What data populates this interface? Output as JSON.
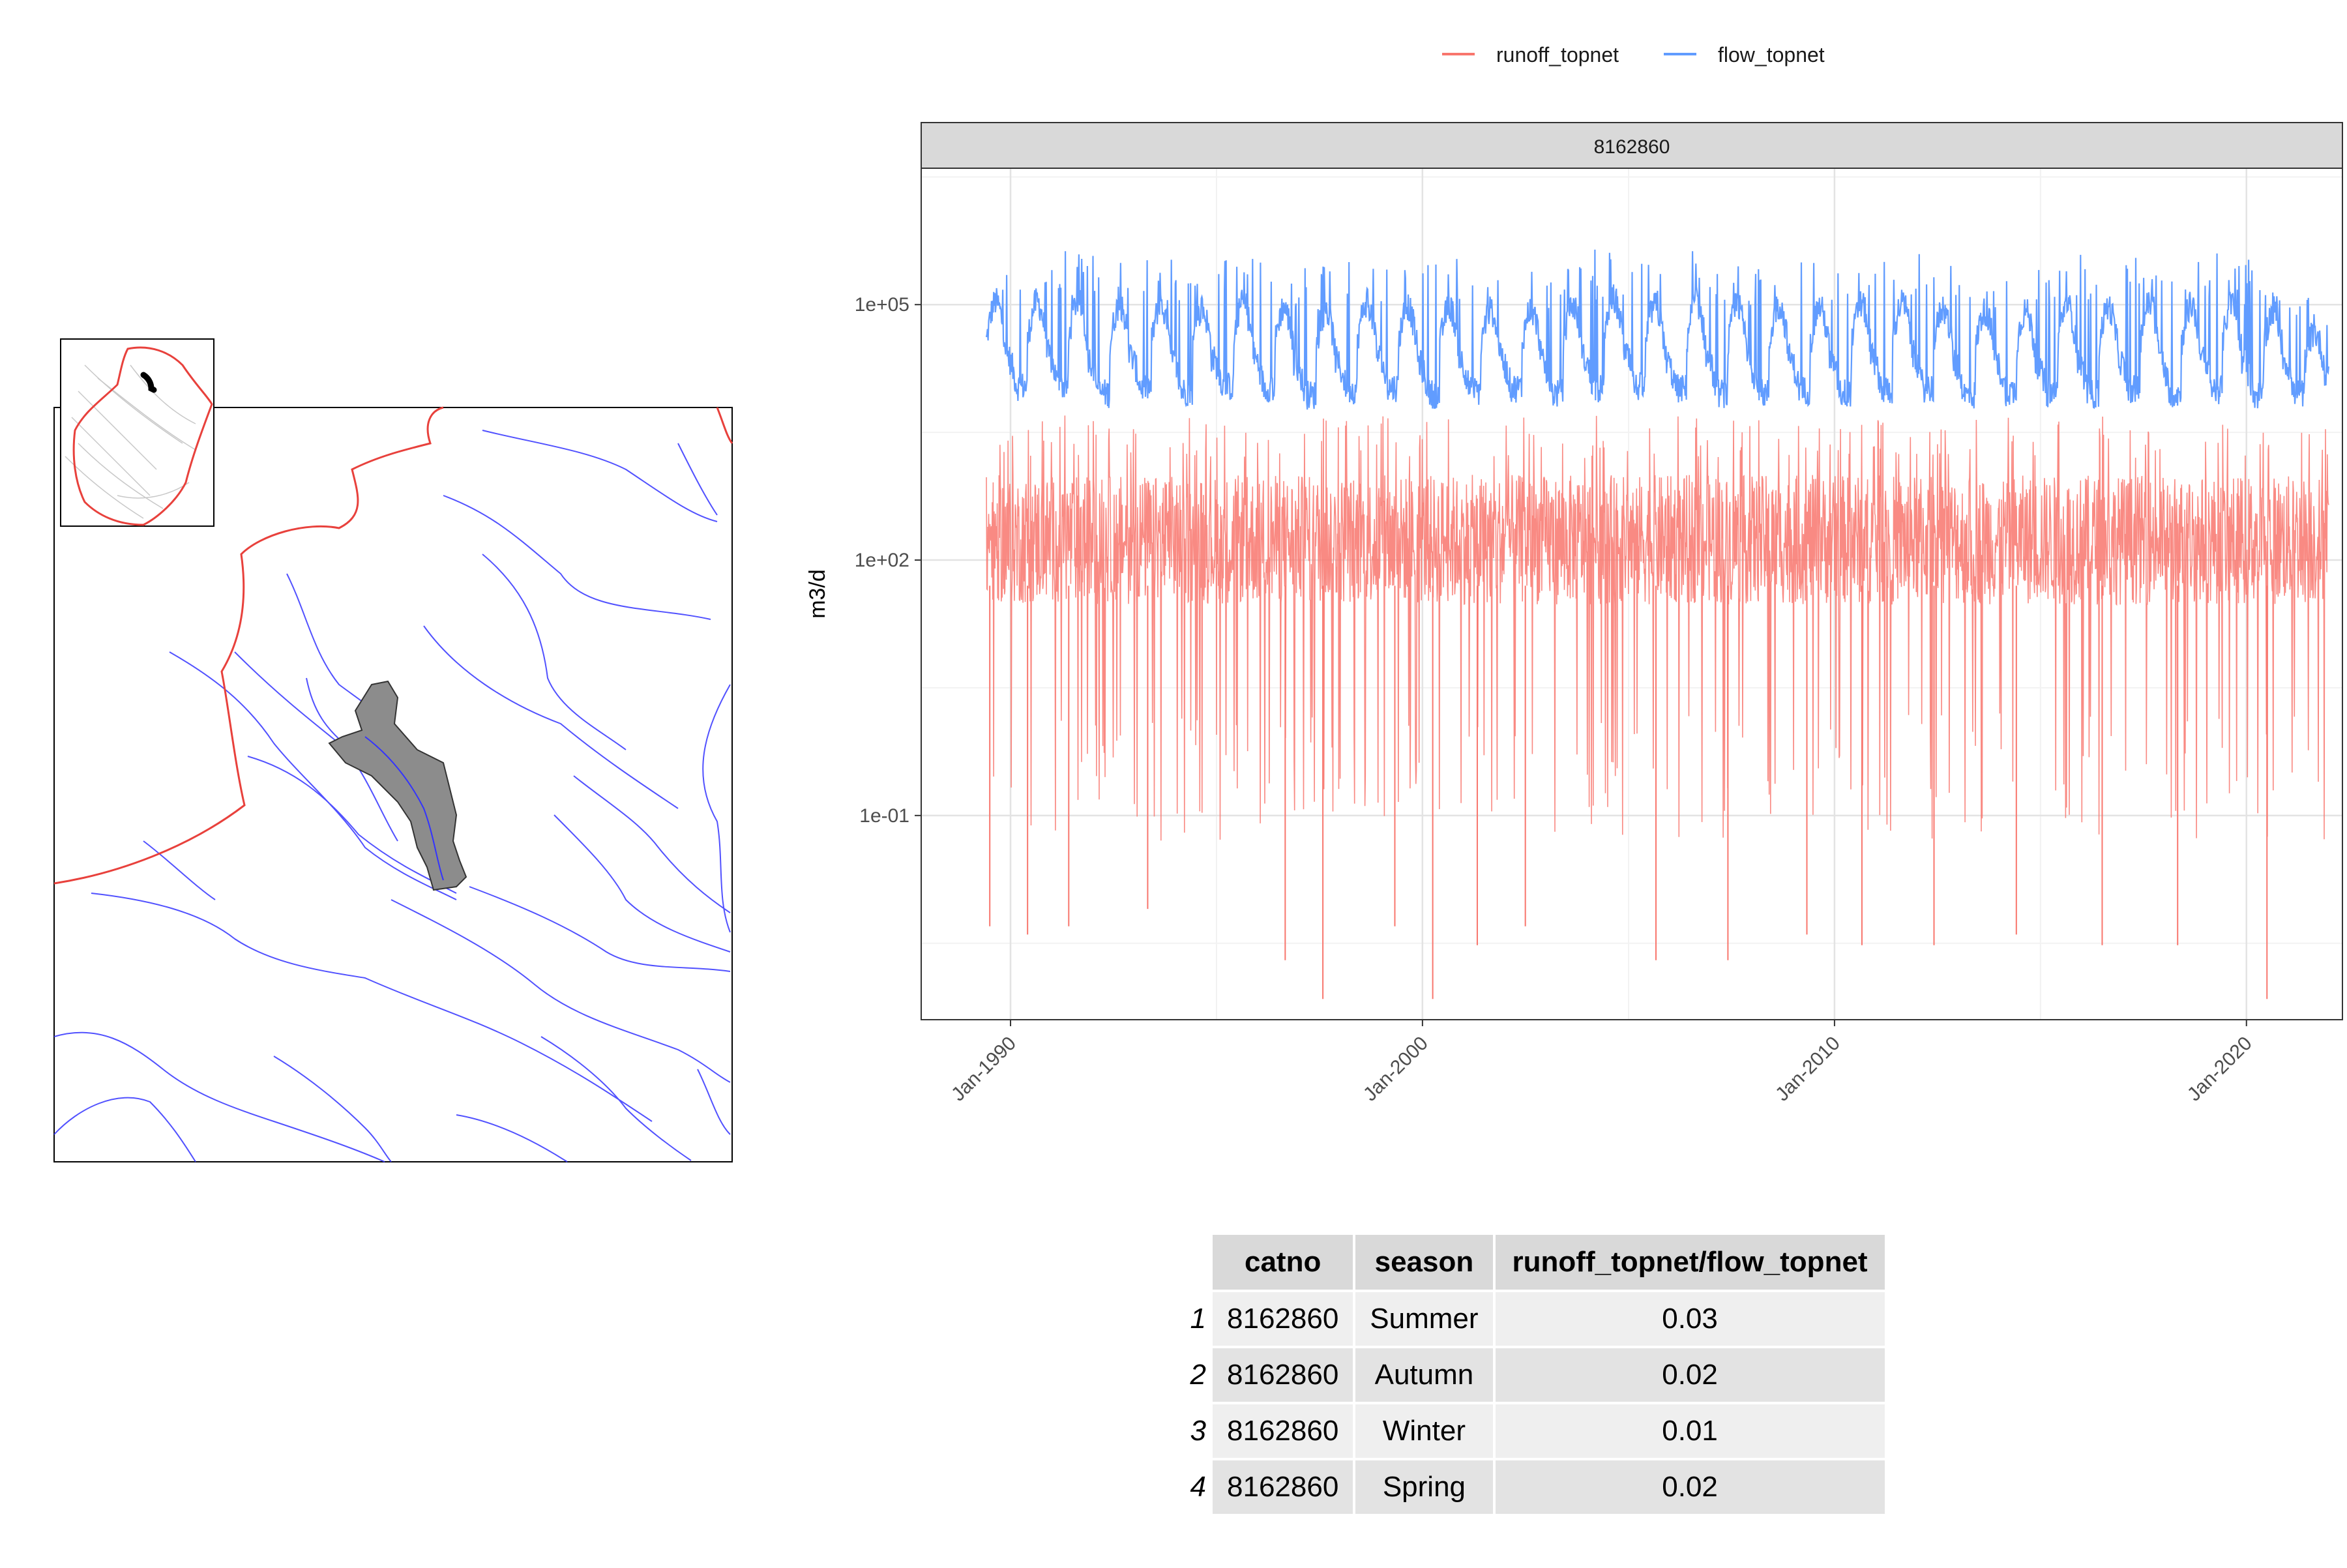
{
  "colors": {
    "runoff": "#F8766D",
    "flow": "#619CFF",
    "catchment_fill": "#8c8c8c",
    "rivers": "#3333ff",
    "boundary": "#e8413c",
    "strip": "#d9d9d9"
  },
  "map": {
    "main_icons": [
      "catchment-polygon",
      "river-network",
      "region-boundary"
    ],
    "inset_icons": [
      "region-outline",
      "catchment-marker"
    ]
  },
  "legend": {
    "items": [
      {
        "label": "runoff_topnet",
        "color": "#F8766D"
      },
      {
        "label": "flow_topnet",
        "color": "#619CFF"
      }
    ],
    "position": "top"
  },
  "chart_data": {
    "type": "line",
    "facet_label": "8162860",
    "ylabel": "m3/d",
    "xlabel": "",
    "y_scale": "log10",
    "ylim": [
      0.0004,
      4000000
    ],
    "y_ticks": [
      {
        "value": 0.1,
        "label": "1e-01"
      },
      {
        "value": 100,
        "label": "1e+02"
      },
      {
        "value": 100000,
        "label": "1e+05"
      }
    ],
    "xlim": [
      "1987-11-01",
      "2022-05-01"
    ],
    "x_ticks": [
      {
        "value": "1990-01-01",
        "label": "Jan-1990"
      },
      {
        "value": "2000-01-01",
        "label": "Jan-2000"
      },
      {
        "value": "2010-01-01",
        "label": "Jan-2010"
      },
      {
        "value": "2020-01-01",
        "label": "Jan-2020"
      }
    ],
    "grid": true,
    "series": [
      {
        "name": "flow_topnet",
        "color": "#619CFF",
        "date_range": [
          "1989-06-01",
          "2021-12-31"
        ],
        "typical_range": [
          5000,
          100000
        ],
        "annual_peaks": [
          {
            "date": "1989-08-01",
            "value": 400000
          },
          {
            "date": "1990-08-01",
            "value": 400000
          },
          {
            "date": "1991-08-01",
            "value": 430000
          },
          {
            "date": "1992-08-01",
            "value": 380000
          },
          {
            "date": "1993-08-01",
            "value": 350000
          },
          {
            "date": "1994-08-01",
            "value": 300000
          },
          {
            "date": "1995-08-01",
            "value": 380000
          },
          {
            "date": "1996-08-01",
            "value": 330000
          },
          {
            "date": "1997-08-01",
            "value": 300000
          },
          {
            "date": "1998-08-01",
            "value": 400000
          },
          {
            "date": "1999-08-01",
            "value": 350000
          },
          {
            "date": "2000-08-01",
            "value": 350000
          },
          {
            "date": "2001-08-01",
            "value": 300000
          },
          {
            "date": "2002-08-01",
            "value": 320000
          },
          {
            "date": "2003-08-01",
            "value": 380000
          },
          {
            "date": "2004-08-01",
            "value": 450000
          },
          {
            "date": "2005-08-01",
            "value": 350000
          },
          {
            "date": "2006-08-01",
            "value": 450000
          },
          {
            "date": "2007-08-01",
            "value": 380000
          },
          {
            "date": "2008-08-01",
            "value": 380000
          },
          {
            "date": "2009-08-01",
            "value": 350000
          },
          {
            "date": "2010-08-01",
            "value": 400000
          },
          {
            "date": "2011-08-01",
            "value": 400000
          },
          {
            "date": "2012-08-01",
            "value": 320000
          },
          {
            "date": "2013-08-01",
            "value": 300000
          },
          {
            "date": "2014-08-01",
            "value": 300000
          },
          {
            "date": "2015-08-01",
            "value": 400000
          },
          {
            "date": "2016-08-01",
            "value": 350000
          },
          {
            "date": "2017-08-01",
            "value": 400000
          },
          {
            "date": "2018-08-01",
            "value": 380000
          },
          {
            "date": "2019-08-01",
            "value": 400000
          },
          {
            "date": "2020-08-01",
            "value": 300000
          },
          {
            "date": "2021-08-01",
            "value": 120000
          }
        ],
        "annual_minima": [
          {
            "date": "1990-03-01",
            "value": 5000
          },
          {
            "date": "1991-03-01",
            "value": 5000
          },
          {
            "date": "1992-03-01",
            "value": 4000
          },
          {
            "date": "1993-03-01",
            "value": 5000
          },
          {
            "date": "1994-03-01",
            "value": 4500
          },
          {
            "date": "1995-03-01",
            "value": 5000
          },
          {
            "date": "1996-03-01",
            "value": 5000
          },
          {
            "date": "1997-03-01",
            "value": 4000
          },
          {
            "date": "1998-03-01",
            "value": 4500
          },
          {
            "date": "1999-03-01",
            "value": 5000
          },
          {
            "date": "2000-03-01",
            "value": 4000
          },
          {
            "date": "2001-03-01",
            "value": 4500
          },
          {
            "date": "2002-03-01",
            "value": 5000
          },
          {
            "date": "2003-03-01",
            "value": 4000
          },
          {
            "date": "2004-03-01",
            "value": 4500
          },
          {
            "date": "2005-03-01",
            "value": 5000
          },
          {
            "date": "2006-03-01",
            "value": 4500
          },
          {
            "date": "2007-03-01",
            "value": 4000
          },
          {
            "date": "2008-03-01",
            "value": 4000
          },
          {
            "date": "2009-03-01",
            "value": 4500
          },
          {
            "date": "2010-03-01",
            "value": 4000
          },
          {
            "date": "2011-03-01",
            "value": 4500
          },
          {
            "date": "2012-03-01",
            "value": 5000
          },
          {
            "date": "2013-03-01",
            "value": 4000
          },
          {
            "date": "2014-03-01",
            "value": 4500
          },
          {
            "date": "2015-03-01",
            "value": 4000
          },
          {
            "date": "2016-03-01",
            "value": 4000
          },
          {
            "date": "2017-03-01",
            "value": 4500
          },
          {
            "date": "2018-03-01",
            "value": 4000
          },
          {
            "date": "2019-03-01",
            "value": 4500
          },
          {
            "date": "2020-03-01",
            "value": 4000
          },
          {
            "date": "2021-03-01",
            "value": 5000
          }
        ]
      },
      {
        "name": "runoff_topnet",
        "color": "#F8766D",
        "date_range": [
          "1989-06-01",
          "2021-12-31"
        ],
        "typical_range": [
          30,
          1000
        ],
        "max_approx": 5000,
        "deep_minima": [
          {
            "date": "1989-07-01",
            "value": 0.005
          },
          {
            "date": "1990-06-01",
            "value": 0.004
          },
          {
            "date": "1991-06-01",
            "value": 0.005
          },
          {
            "date": "1993-05-01",
            "value": 0.008
          },
          {
            "date": "1996-09-01",
            "value": 0.002
          },
          {
            "date": "1997-08-01",
            "value": 0.0007
          },
          {
            "date": "1999-05-01",
            "value": 0.005
          },
          {
            "date": "2000-04-01",
            "value": 0.0007
          },
          {
            "date": "2001-05-01",
            "value": 0.003
          },
          {
            "date": "2002-07-01",
            "value": 0.005
          },
          {
            "date": "2005-09-01",
            "value": 0.002
          },
          {
            "date": "2007-06-01",
            "value": 0.002
          },
          {
            "date": "2009-05-01",
            "value": 0.004
          },
          {
            "date": "2010-09-01",
            "value": 0.003
          },
          {
            "date": "2012-06-01",
            "value": 0.003
          },
          {
            "date": "2014-06-01",
            "value": 0.004
          },
          {
            "date": "2016-07-01",
            "value": 0.003
          },
          {
            "date": "2018-05-01",
            "value": 0.003
          },
          {
            "date": "2020-07-01",
            "value": 0.0007
          }
        ]
      }
    ]
  },
  "table": {
    "headers": [
      "catno",
      "season",
      "runoff_topnet/flow_topnet"
    ],
    "rows": [
      {
        "num": "1",
        "catno": "8162860",
        "season": "Summer",
        "ratio": "0.03"
      },
      {
        "num": "2",
        "catno": "8162860",
        "season": "Autumn",
        "ratio": "0.02"
      },
      {
        "num": "3",
        "catno": "8162860",
        "season": "Winter",
        "ratio": "0.01"
      },
      {
        "num": "4",
        "catno": "8162860",
        "season": "Spring",
        "ratio": "0.02"
      }
    ]
  }
}
